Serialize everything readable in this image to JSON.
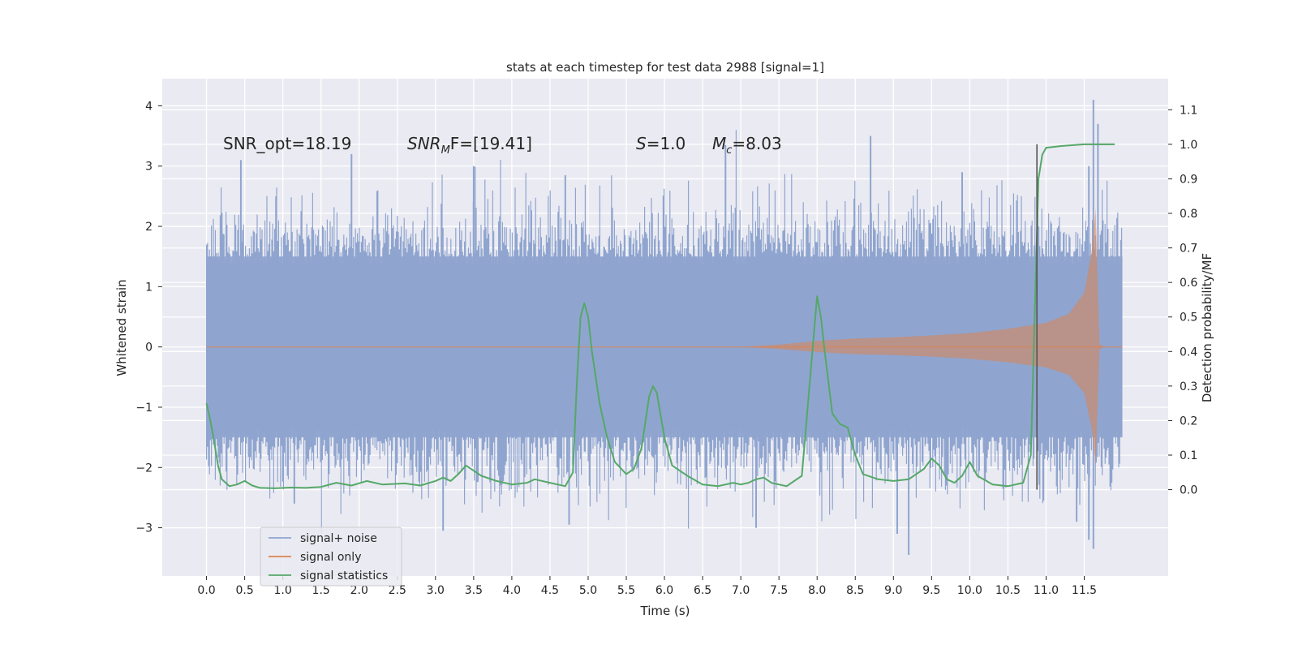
{
  "chart_data": {
    "type": "line",
    "title": "stats at each timestep for test data 2988 [signal=1]",
    "xlabel": "Time (s)",
    "ylabel_left": "Whitened strain",
    "ylabel_right": "Detection probability/MF",
    "xlim": [
      -0.58,
      12.6
    ],
    "ylim_left": [
      -3.8,
      4.45
    ],
    "ylim_right": [
      -0.25,
      1.19
    ],
    "x_ticks": [
      0.0,
      0.5,
      1.0,
      1.5,
      2.0,
      2.5,
      3.0,
      3.5,
      4.0,
      4.5,
      5.0,
      5.5,
      6.0,
      6.5,
      7.0,
      7.5,
      8.0,
      8.5,
      9.0,
      9.5,
      10.0,
      10.5,
      11.0,
      11.5
    ],
    "x_tick_labels": [
      "0.0",
      "0.5",
      "1.0",
      "1.5",
      "2.0",
      "2.5",
      "3.0",
      "3.5",
      "4.0",
      "4.5",
      "5.0",
      "5.5",
      "6.0",
      "6.5",
      "7.0",
      "7.5",
      "8.0",
      "8.5",
      "9.0",
      "9.5",
      "10.0",
      "10.5",
      "11.0",
      "11.5"
    ],
    "y_left_ticks": [
      -3,
      -2,
      -1,
      0,
      1,
      2,
      3,
      4
    ],
    "y_left_tick_labels": [
      "−3",
      "−2",
      "−1",
      "0",
      "1",
      "2",
      "3",
      "4"
    ],
    "y_right_ticks": [
      0.0,
      0.1,
      0.2,
      0.3,
      0.4,
      0.5,
      0.6,
      0.7,
      0.8,
      0.9,
      1.0,
      1.1
    ],
    "y_right_tick_labels": [
      "0.0",
      "0.1",
      "0.2",
      "0.3",
      "0.4",
      "0.5",
      "0.6",
      "0.7",
      "0.8",
      "0.9",
      "1.0",
      "1.1"
    ],
    "grid": true,
    "legend_position": "lower-left",
    "colors": {
      "background": "#eaeaf2",
      "grid": "#ffffff",
      "noise": "#8fa5cf",
      "signal": "#dd8452",
      "stat": "#55a868",
      "vline": "#555555"
    },
    "series": [
      {
        "name": "signal+ noise",
        "axis": "left",
        "kind": "noise",
        "x_start": 0.0,
        "x_end": 12.0,
        "envelope_typical": 1.5,
        "peak_max": 4.1,
        "peak_min": -3.35
      },
      {
        "name": "signal only",
        "axis": "left",
        "kind": "chirp",
        "x_start": 0.0,
        "x_end": 12.0,
        "merger_time": 11.65,
        "peak_amplitude": 2.3,
        "envelope": [
          {
            "x": 7.0,
            "y": 0.0
          },
          {
            "x": 7.5,
            "y": 0.04
          },
          {
            "x": 8.0,
            "y": 0.1
          },
          {
            "x": 8.5,
            "y": 0.14
          },
          {
            "x": 9.0,
            "y": 0.16
          },
          {
            "x": 9.5,
            "y": 0.19
          },
          {
            "x": 10.0,
            "y": 0.23
          },
          {
            "x": 10.5,
            "y": 0.3
          },
          {
            "x": 11.0,
            "y": 0.4
          },
          {
            "x": 11.3,
            "y": 0.55
          },
          {
            "x": 11.5,
            "y": 0.9
          },
          {
            "x": 11.6,
            "y": 1.6
          },
          {
            "x": 11.65,
            "y": 2.3
          },
          {
            "x": 11.7,
            "y": 0.05
          },
          {
            "x": 11.75,
            "y": 0.0
          }
        ]
      },
      {
        "name": "signal statistics",
        "axis": "right",
        "kind": "line",
        "points": [
          {
            "x": 0.0,
            "y": 0.25
          },
          {
            "x": 0.05,
            "y": 0.2
          },
          {
            "x": 0.1,
            "y": 0.14
          },
          {
            "x": 0.15,
            "y": 0.07
          },
          {
            "x": 0.2,
            "y": 0.03
          },
          {
            "x": 0.3,
            "y": 0.01
          },
          {
            "x": 0.4,
            "y": 0.015
          },
          {
            "x": 0.5,
            "y": 0.025
          },
          {
            "x": 0.6,
            "y": 0.012
          },
          {
            "x": 0.7,
            "y": 0.005
          },
          {
            "x": 0.9,
            "y": 0.004
          },
          {
            "x": 1.1,
            "y": 0.006
          },
          {
            "x": 1.3,
            "y": 0.005
          },
          {
            "x": 1.5,
            "y": 0.008
          },
          {
            "x": 1.7,
            "y": 0.02
          },
          {
            "x": 1.9,
            "y": 0.012
          },
          {
            "x": 2.1,
            "y": 0.025
          },
          {
            "x": 2.3,
            "y": 0.015
          },
          {
            "x": 2.6,
            "y": 0.018
          },
          {
            "x": 2.8,
            "y": 0.012
          },
          {
            "x": 3.0,
            "y": 0.025
          },
          {
            "x": 3.1,
            "y": 0.035
          },
          {
            "x": 3.2,
            "y": 0.025
          },
          {
            "x": 3.3,
            "y": 0.045
          },
          {
            "x": 3.4,
            "y": 0.07
          },
          {
            "x": 3.5,
            "y": 0.055
          },
          {
            "x": 3.6,
            "y": 0.04
          },
          {
            "x": 3.8,
            "y": 0.025
          },
          {
            "x": 4.0,
            "y": 0.015
          },
          {
            "x": 4.2,
            "y": 0.02
          },
          {
            "x": 4.3,
            "y": 0.03
          },
          {
            "x": 4.5,
            "y": 0.02
          },
          {
            "x": 4.7,
            "y": 0.01
          },
          {
            "x": 4.8,
            "y": 0.05
          },
          {
            "x": 4.85,
            "y": 0.3
          },
          {
            "x": 4.9,
            "y": 0.5
          },
          {
            "x": 4.95,
            "y": 0.54
          },
          {
            "x": 5.0,
            "y": 0.5
          },
          {
            "x": 5.05,
            "y": 0.4
          },
          {
            "x": 5.15,
            "y": 0.25
          },
          {
            "x": 5.25,
            "y": 0.15
          },
          {
            "x": 5.35,
            "y": 0.08
          },
          {
            "x": 5.5,
            "y": 0.045
          },
          {
            "x": 5.6,
            "y": 0.06
          },
          {
            "x": 5.7,
            "y": 0.12
          },
          {
            "x": 5.8,
            "y": 0.27
          },
          {
            "x": 5.85,
            "y": 0.3
          },
          {
            "x": 5.9,
            "y": 0.28
          },
          {
            "x": 6.0,
            "y": 0.15
          },
          {
            "x": 6.1,
            "y": 0.07
          },
          {
            "x": 6.3,
            "y": 0.04
          },
          {
            "x": 6.5,
            "y": 0.015
          },
          {
            "x": 6.7,
            "y": 0.01
          },
          {
            "x": 6.9,
            "y": 0.02
          },
          {
            "x": 7.0,
            "y": 0.015
          },
          {
            "x": 7.1,
            "y": 0.02
          },
          {
            "x": 7.2,
            "y": 0.03
          },
          {
            "x": 7.3,
            "y": 0.035
          },
          {
            "x": 7.4,
            "y": 0.02
          },
          {
            "x": 7.6,
            "y": 0.01
          },
          {
            "x": 7.8,
            "y": 0.04
          },
          {
            "x": 7.9,
            "y": 0.3
          },
          {
            "x": 8.0,
            "y": 0.56
          },
          {
            "x": 8.05,
            "y": 0.5
          },
          {
            "x": 8.1,
            "y": 0.4
          },
          {
            "x": 8.2,
            "y": 0.22
          },
          {
            "x": 8.3,
            "y": 0.19
          },
          {
            "x": 8.4,
            "y": 0.18
          },
          {
            "x": 8.5,
            "y": 0.1
          },
          {
            "x": 8.6,
            "y": 0.045
          },
          {
            "x": 8.8,
            "y": 0.03
          },
          {
            "x": 9.0,
            "y": 0.025
          },
          {
            "x": 9.2,
            "y": 0.03
          },
          {
            "x": 9.4,
            "y": 0.06
          },
          {
            "x": 9.5,
            "y": 0.09
          },
          {
            "x": 9.6,
            "y": 0.07
          },
          {
            "x": 9.7,
            "y": 0.03
          },
          {
            "x": 9.8,
            "y": 0.02
          },
          {
            "x": 9.9,
            "y": 0.04
          },
          {
            "x": 10.0,
            "y": 0.08
          },
          {
            "x": 10.1,
            "y": 0.04
          },
          {
            "x": 10.3,
            "y": 0.015
          },
          {
            "x": 10.5,
            "y": 0.01
          },
          {
            "x": 10.7,
            "y": 0.02
          },
          {
            "x": 10.8,
            "y": 0.1
          },
          {
            "x": 10.85,
            "y": 0.5
          },
          {
            "x": 10.9,
            "y": 0.9
          },
          {
            "x": 10.95,
            "y": 0.97
          },
          {
            "x": 11.0,
            "y": 0.99
          },
          {
            "x": 11.2,
            "y": 0.995
          },
          {
            "x": 11.5,
            "y": 1.0
          },
          {
            "x": 11.9,
            "y": 1.0
          }
        ]
      }
    ],
    "vline_x": 10.88,
    "annotations": {
      "snr_opt": "SNR_opt=18.19",
      "snr_mf_var": "SNR",
      "snr_mf_sub": "M",
      "snr_mf_rest": "F=[19.41]",
      "s_var": "S",
      "s_rest": "=1.0",
      "mc_var": "M",
      "mc_sub": "c",
      "mc_rest": "=8.03"
    }
  }
}
